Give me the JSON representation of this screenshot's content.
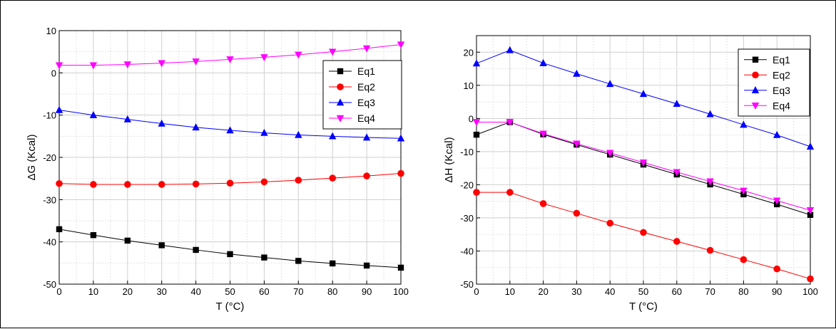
{
  "chart_data": [
    {
      "type": "line",
      "xlabel": "T (°C)",
      "ylabel": "ΔG (Kcal)",
      "xlim": [
        0,
        100
      ],
      "ylim": [
        -50,
        10
      ],
      "xticks": [
        0,
        10,
        20,
        30,
        40,
        50,
        60,
        70,
        80,
        90,
        100
      ],
      "yticks": [
        10,
        0,
        -10,
        -20,
        -30,
        -40,
        -50
      ],
      "grid": true,
      "legend_position": "top-right",
      "x": [
        0,
        10,
        20,
        30,
        40,
        50,
        60,
        70,
        80,
        90,
        100
      ],
      "series": [
        {
          "name": "Eq1",
          "color": "#000000",
          "marker": "square",
          "values": [
            -37.0,
            -38.4,
            -39.7,
            -40.8,
            -41.9,
            -42.9,
            -43.7,
            -44.5,
            -45.1,
            -45.6,
            -46.1
          ]
        },
        {
          "name": "Eq2",
          "color": "#ff0000",
          "marker": "circle",
          "values": [
            -26.2,
            -26.4,
            -26.4,
            -26.4,
            -26.3,
            -26.1,
            -25.8,
            -25.4,
            -24.9,
            -24.4,
            -23.8
          ]
        },
        {
          "name": "Eq3",
          "color": "#0000ff",
          "marker": "triangle-up",
          "values": [
            -8.8,
            -10.0,
            -11.0,
            -12.0,
            -12.9,
            -13.6,
            -14.2,
            -14.7,
            -15.0,
            -15.3,
            -15.5
          ]
        },
        {
          "name": "Eq4",
          "color": "#ff00ff",
          "marker": "triangle-down",
          "values": [
            1.8,
            1.8,
            2.0,
            2.3,
            2.7,
            3.2,
            3.7,
            4.3,
            5.0,
            5.8,
            6.7
          ]
        }
      ]
    },
    {
      "type": "line",
      "xlabel": "T (°C)",
      "ylabel": "ΔH (Kcal)",
      "xlim": [
        0,
        100
      ],
      "ylim": [
        -50,
        25
      ],
      "xticks": [
        0,
        10,
        20,
        30,
        40,
        50,
        60,
        70,
        80,
        90,
        100
      ],
      "yticks": [
        20,
        10,
        0,
        -10,
        -20,
        -30,
        -40,
        -50
      ],
      "grid": true,
      "legend_position": "top-right",
      "x": [
        0,
        10,
        20,
        30,
        40,
        50,
        60,
        70,
        80,
        90,
        100
      ],
      "series": [
        {
          "name": "Eq1",
          "color": "#000000",
          "marker": "square",
          "values": [
            -4.9,
            -1.1,
            -4.8,
            -7.9,
            -10.9,
            -13.9,
            -16.9,
            -19.9,
            -22.9,
            -25.9,
            -29.1
          ]
        },
        {
          "name": "Eq2",
          "color": "#ff0000",
          "marker": "circle",
          "values": [
            -22.3,
            -22.3,
            -25.7,
            -28.6,
            -31.6,
            -34.4,
            -37.1,
            -39.8,
            -42.6,
            -45.4,
            -48.4
          ]
        },
        {
          "name": "Eq3",
          "color": "#0000ff",
          "marker": "triangle-up",
          "values": [
            16.6,
            20.6,
            16.7,
            13.5,
            10.4,
            7.4,
            4.4,
            1.3,
            -1.9,
            -5.0,
            -8.5
          ]
        },
        {
          "name": "Eq4",
          "color": "#ff00ff",
          "marker": "triangle-down",
          "values": [
            -1.1,
            -1.1,
            -4.6,
            -7.6,
            -10.4,
            -13.3,
            -16.2,
            -19.0,
            -21.8,
            -24.8,
            -27.7
          ]
        }
      ]
    }
  ]
}
